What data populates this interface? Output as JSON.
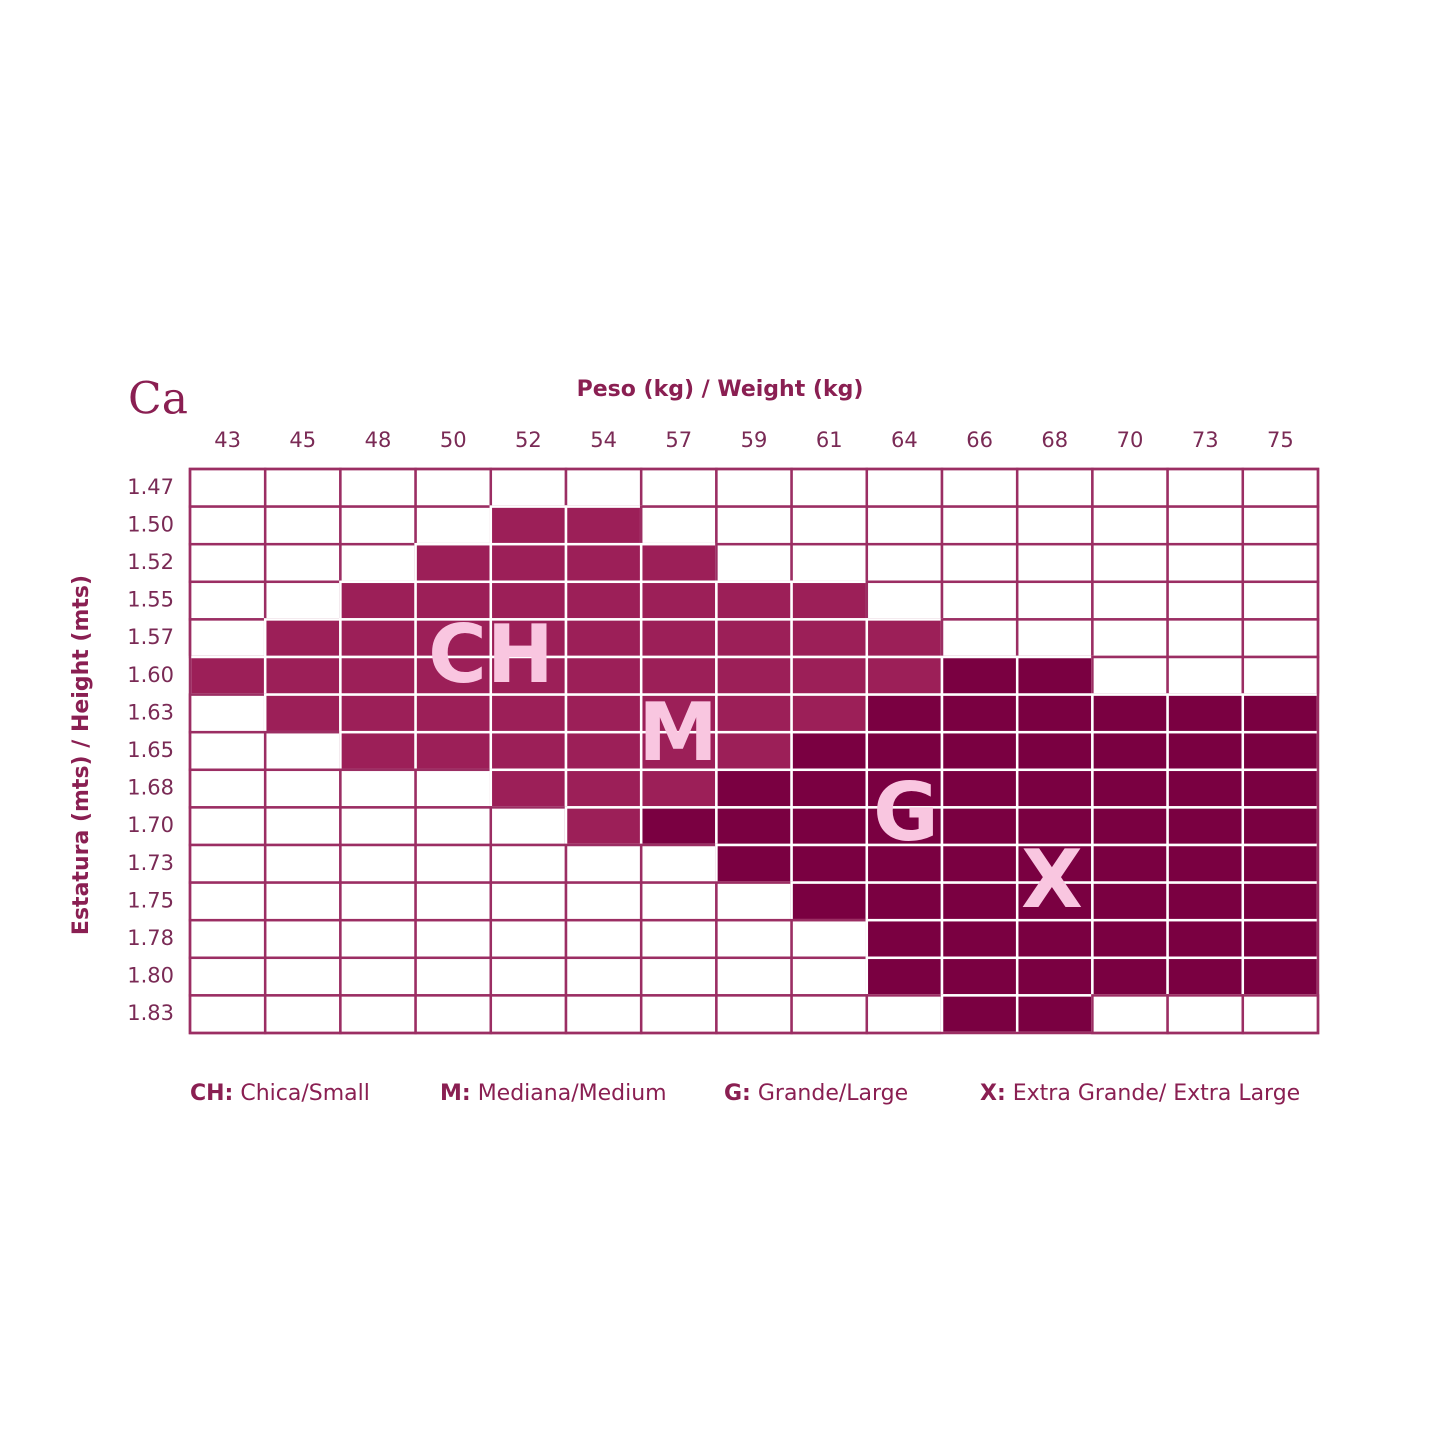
{
  "logo": "Ca",
  "header": {
    "title": "Peso (kg) / Weight (kg)",
    "y_label": "Estatura (mts) / Height (mts)"
  },
  "table": {
    "columns": [
      "43",
      "45",
      "48",
      "50",
      "52",
      "54",
      "57",
      "59",
      "61",
      "64",
      "66",
      "68",
      "70",
      "73",
      "75"
    ],
    "rows": [
      "1.47",
      "1.50",
      "1.52",
      "1.55",
      "1.57",
      "1.60",
      "1.63",
      "1.65",
      "1.68",
      "1.70",
      "1.73",
      "1.75",
      "1.78",
      "1.80",
      "1.83"
    ],
    "border_color": "#9b2e63",
    "cells": [
      [
        "#fff",
        "#fff",
        "#fff",
        "#fff",
        "#fff",
        "#fff",
        "#fff",
        "#fff",
        "#fff",
        "#fff",
        "#fff",
        "#fff",
        "#fff",
        "#fff",
        "#fff"
      ],
      [
        "#fff",
        "#fff",
        "#fff",
        "#fff",
        "#9c1f58",
        "#9c1f58",
        "#fff",
        "#fff",
        "#fff",
        "#fff",
        "#fff",
        "#fff",
        "#fff",
        "#fff",
        "#fff"
      ],
      [
        "#fff",
        "#fff",
        "#fff",
        "#9c1f58",
        "#9c1f58",
        "#9c1f58",
        "#9c1f58",
        "#fff",
        "#fff",
        "#fff",
        "#fff",
        "#fff",
        "#fff",
        "#fff",
        "#fff"
      ],
      [
        "#fff",
        "#fff",
        "#9c1f58",
        "#9c1f58",
        "#9c1f58",
        "#9c1f58",
        "#9c1f58",
        "#9c1f58",
        "#9c1f58",
        "#fff",
        "#fff",
        "#fff",
        "#fff",
        "#fff",
        "#fff"
      ],
      [
        "#fff",
        "#9c1f58",
        "#9c1f58",
        "#9c1f58",
        "#9c1f58",
        "#9c1f58",
        "#9c1f58",
        "#9c1f58",
        "#9c1f58",
        "#9c1f58",
        "#fff",
        "#fff",
        "#fff",
        "#fff",
        "#fff"
      ],
      [
        "#9c1f58",
        "#9c1f58",
        "#9c1f58",
        "#9c1f58",
        "#9c1f58",
        "#9c1f58",
        "#9c1f58",
        "#9c1f58",
        "#9c1f58",
        "#9c1f58",
        "#7a0041",
        "#7a0041",
        "#fff",
        "#fff",
        "#fff"
      ],
      [
        "#fff",
        "#9c1f58",
        "#9c1f58",
        "#9c1f58",
        "#9c1f58",
        "#9c1f58",
        "#9c1f58",
        "#9c1f58",
        "#9c1f58",
        "#7a0041",
        "#7a0041",
        "#7a0041",
        "#7a0041",
        "#7a0041",
        "#7a0041"
      ],
      [
        "#fff",
        "#fff",
        "#9c1f58",
        "#9c1f58",
        "#9c1f58",
        "#9c1f58",
        "#9c1f58",
        "#9c1f58",
        "#7a0041",
        "#7a0041",
        "#7a0041",
        "#7a0041",
        "#7a0041",
        "#7a0041",
        "#7a0041"
      ],
      [
        "#fff",
        "#fff",
        "#fff",
        "#fff",
        "#9c1f58",
        "#9c1f58",
        "#9c1f58",
        "#7a0041",
        "#7a0041",
        "#7a0041",
        "#7a0041",
        "#7a0041",
        "#7a0041",
        "#7a0041",
        "#7a0041"
      ],
      [
        "#fff",
        "#fff",
        "#fff",
        "#fff",
        "#fff",
        "#9c1f58",
        "#7a0041",
        "#7a0041",
        "#7a0041",
        "#7a0041",
        "#7a0041",
        "#7a0041",
        "#7a0041",
        "#7a0041",
        "#7a0041"
      ],
      [
        "#fff",
        "#fff",
        "#fff",
        "#fff",
        "#fff",
        "#fff",
        "#fff",
        "#7a0041",
        "#7a0041",
        "#7a0041",
        "#7a0041",
        "#7a0041",
        "#7a0041",
        "#7a0041",
        "#7a0041"
      ],
      [
        "#fff",
        "#fff",
        "#fff",
        "#fff",
        "#fff",
        "#fff",
        "#fff",
        "#fff",
        "#7a0041",
        "#7a0041",
        "#7a0041",
        "#7a0041",
        "#7a0041",
        "#7a0041",
        "#7a0041"
      ],
      [
        "#fff",
        "#fff",
        "#fff",
        "#fff",
        "#fff",
        "#fff",
        "#fff",
        "#fff",
        "#fff",
        "#7a0041",
        "#7a0041",
        "#7a0041",
        "#7a0041",
        "#7a0041",
        "#7a0041"
      ],
      [
        "#fff",
        "#fff",
        "#fff",
        "#fff",
        "#fff",
        "#fff",
        "#fff",
        "#fff",
        "#fff",
        "#7a0041",
        "#7a0041",
        "#7a0041",
        "#7a0041",
        "#7a0041",
        "#7a0041"
      ],
      [
        "#fff",
        "#fff",
        "#fff",
        "#fff",
        "#fff",
        "#fff",
        "#fff",
        "#fff",
        "#fff",
        "#fff",
        "#7a0041",
        "#7a0041",
        "#fff",
        "#fff",
        "#fff"
      ]
    ]
  },
  "zones": [
    "CH",
    "M",
    "G",
    "X"
  ],
  "legend": [
    {
      "key": "CH:",
      "text": "Chica/Small"
    },
    {
      "key": "M:",
      "text": "Mediana/Medium"
    },
    {
      "key": "G:",
      "text": "Grande/Large"
    },
    {
      "key": "X:",
      "text": "Extra Grande/ Extra Large"
    }
  ]
}
